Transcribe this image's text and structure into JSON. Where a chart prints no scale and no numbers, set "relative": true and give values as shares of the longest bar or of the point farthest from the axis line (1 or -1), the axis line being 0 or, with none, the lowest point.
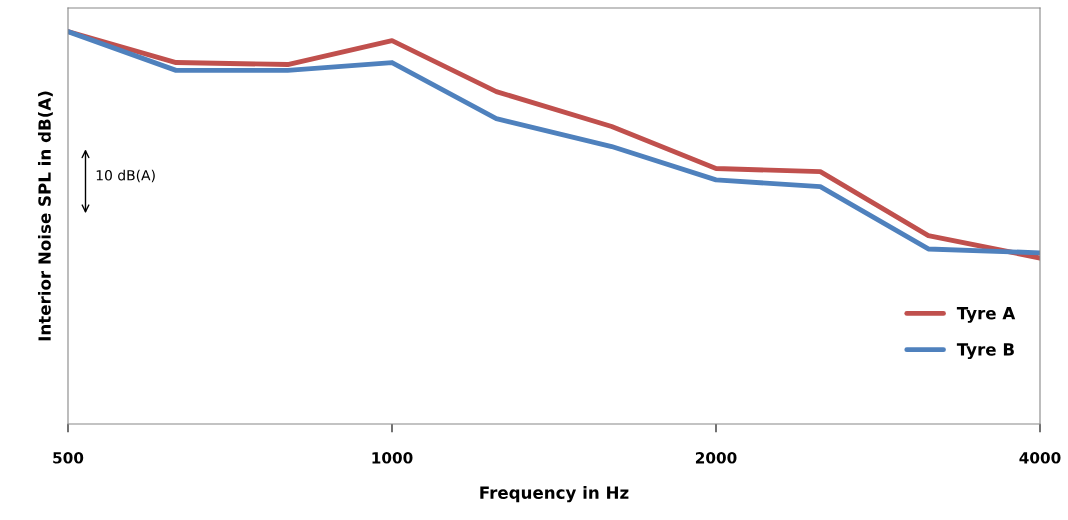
{
  "chart_data": {
    "type": "line",
    "xlabel": "Frequency in Hz",
    "ylabel": "Interior Noise SPL in dB(A)",
    "x": [
      500,
      630,
      800,
      1000,
      1250,
      1600,
      2000,
      2500,
      3150,
      4000
    ],
    "relative": true,
    "log": "x",
    "xlim": [
      500,
      4000
    ],
    "xticks": [
      500,
      1000,
      2000,
      4000
    ],
    "series": [
      {
        "name": "Tyre A",
        "color": "#c0504d",
        "values": [
          1,
          0.921,
          0.916,
          0.977,
          0.847,
          0.758,
          0.651,
          0.643,
          0.48,
          0.423
        ]
      },
      {
        "name": "Tyre B",
        "color": "#4f81bd",
        "values": [
          1,
          0.901,
          0.901,
          0.921,
          0.778,
          0.707,
          0.622,
          0.605,
          0.446,
          0.436
        ]
      }
    ],
    "annotations": [
      "10 dB(A)"
    ],
    "grid": false,
    "legend": "bottom right",
    "marker": "none",
    "line_style": "solid"
  }
}
